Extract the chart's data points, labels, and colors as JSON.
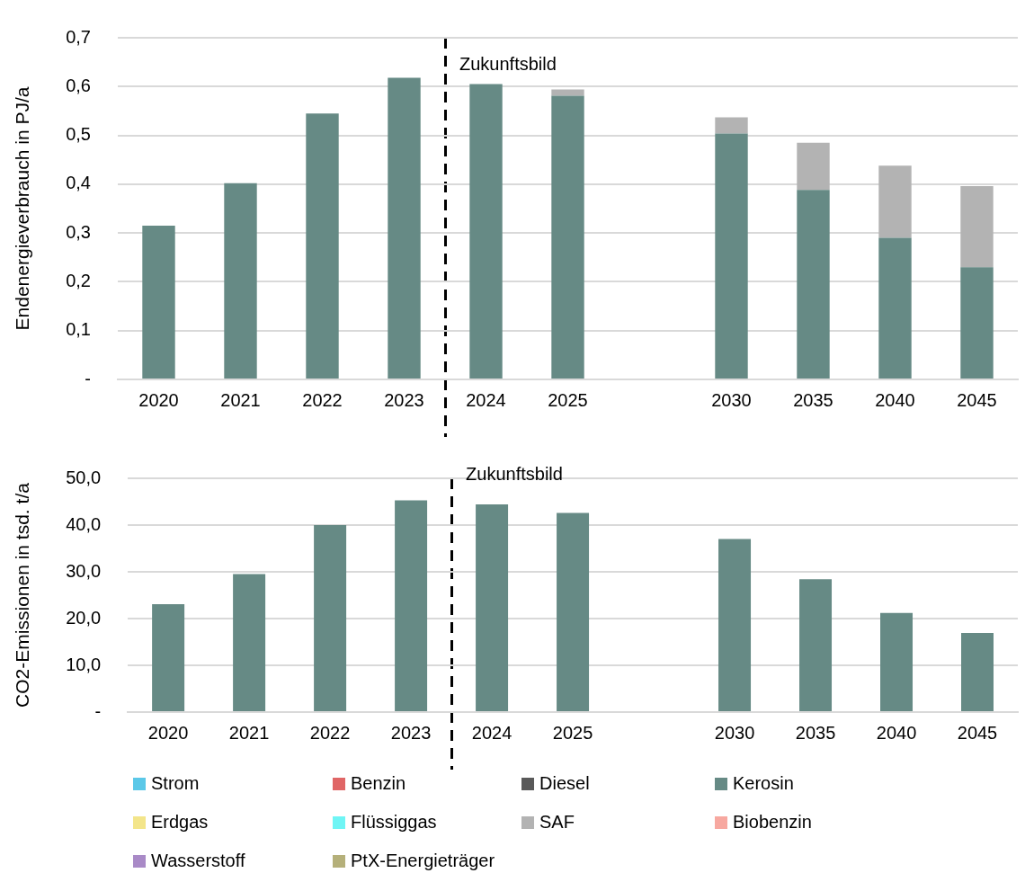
{
  "chart_data": [
    {
      "type": "bar",
      "ylabel": "Endenergieverbrauch in PJ/a",
      "categories": [
        "2020",
        "2021",
        "2022",
        "2023",
        "2024",
        "2025",
        null,
        "2030",
        "2035",
        "2040",
        "2045"
      ],
      "stacked": true,
      "series": [
        {
          "color": "#668a85",
          "values": [
            0.315,
            0.402,
            0.545,
            0.618,
            0.605,
            0.581,
            null,
            0.504,
            0.388,
            0.29,
            0.23
          ]
        },
        {
          "color": "#b3b3b3",
          "values": [
            null,
            null,
            null,
            null,
            null,
            0.013,
            null,
            0.033,
            0.097,
            0.148,
            0.166
          ]
        }
      ],
      "ylim": [
        0,
        0.7
      ],
      "yticks": [
        {
          "value": 0,
          "label": "-"
        },
        {
          "value": 0.1,
          "label": "0,1"
        },
        {
          "value": 0.2,
          "label": "0,2"
        },
        {
          "value": 0.3,
          "label": "0,3"
        },
        {
          "value": 0.4,
          "label": "0,4"
        },
        {
          "value": 0.5,
          "label": "0,5"
        },
        {
          "value": 0.6,
          "label": "0,6"
        },
        {
          "value": 0.7,
          "label": "0,7"
        }
      ],
      "grid": "y",
      "legend": false,
      "annotations": [
        "Zukunftsbild"
      ]
    },
    {
      "type": "bar",
      "ylabel": "CO2-Emissionen in tsd. t/a",
      "categories": [
        "2020",
        "2021",
        "2022",
        "2023",
        "2024",
        "2025",
        null,
        "2030",
        "2035",
        "2040",
        "2045"
      ],
      "stacked": true,
      "series": [
        {
          "name": "Strom",
          "color": "#5bc8e8",
          "values": [
            null,
            null,
            null,
            null,
            null,
            null,
            null,
            null,
            null,
            null,
            null
          ]
        },
        {
          "name": "Benzin",
          "color": "#e06666",
          "values": [
            null,
            null,
            null,
            null,
            null,
            null,
            null,
            null,
            null,
            null,
            null
          ]
        },
        {
          "name": "Diesel",
          "color": "#595959",
          "values": [
            null,
            null,
            null,
            null,
            null,
            null,
            null,
            null,
            null,
            null,
            null
          ]
        },
        {
          "name": "Kerosin",
          "color": "#668a85",
          "values": [
            23.1,
            29.5,
            40.0,
            45.3,
            44.4,
            42.6,
            null,
            37.0,
            28.4,
            21.2,
            16.9
          ]
        },
        {
          "name": "Erdgas",
          "color": "#f3e58a",
          "values": [
            null,
            null,
            null,
            null,
            null,
            null,
            null,
            null,
            null,
            null,
            null
          ]
        },
        {
          "name": "Flüssiggas",
          "color": "#6ff5f5",
          "values": [
            null,
            null,
            null,
            null,
            null,
            null,
            null,
            null,
            null,
            null,
            null
          ]
        },
        {
          "name": "SAF",
          "color": "#b3b3b3",
          "values": [
            null,
            null,
            null,
            null,
            null,
            null,
            null,
            null,
            null,
            null,
            null
          ]
        },
        {
          "name": "Biobenzin",
          "color": "#f7a8a0",
          "values": [
            null,
            null,
            null,
            null,
            null,
            null,
            null,
            null,
            null,
            null,
            null
          ]
        },
        {
          "name": "Wasserstoff",
          "color": "#a98ac7",
          "values": [
            null,
            null,
            null,
            null,
            null,
            null,
            null,
            null,
            null,
            null,
            null
          ]
        },
        {
          "name": "PtX-Energieträger",
          "color": "#b5b07a",
          "values": [
            null,
            null,
            null,
            null,
            null,
            null,
            null,
            null,
            null,
            null,
            null
          ]
        }
      ],
      "ylim": [
        0,
        50
      ],
      "yticks": [
        {
          "value": 0,
          "label": "-"
        },
        {
          "value": 10,
          "label": "10,0"
        },
        {
          "value": 20,
          "label": "20,0"
        },
        {
          "value": 30,
          "label": "30,0"
        },
        {
          "value": 40,
          "label": "40,0"
        },
        {
          "value": 50,
          "label": "50,0"
        }
      ],
      "grid": "y",
      "legend": "bottom",
      "annotations": [
        "Zukunftsbild"
      ]
    }
  ]
}
